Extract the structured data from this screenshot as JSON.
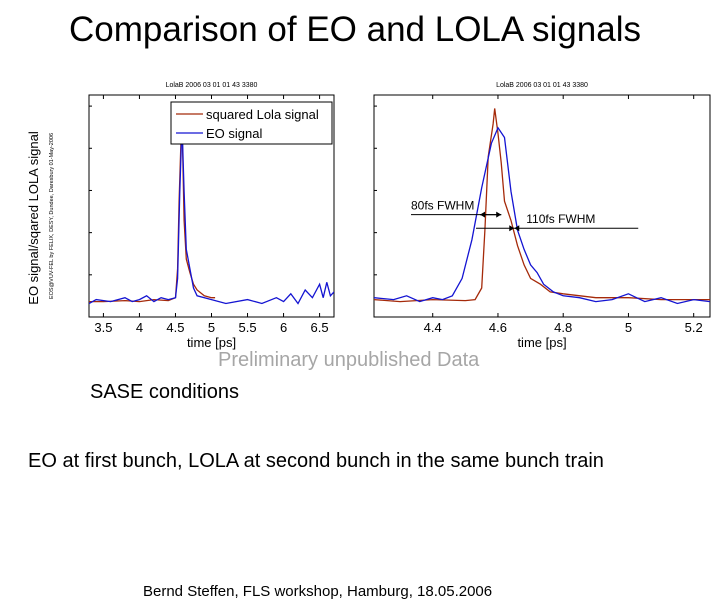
{
  "slide": {
    "title": "Comparison of EO and LOLA signals",
    "watermark": "Preliminary unpublished Data",
    "sase": "SASE conditions",
    "bunch_note": "EO at first bunch, LOLA at second bunch in the same bunch train",
    "footer": "Bernd Steffen, FLS workshop, Hamburg, 18.05.2006"
  },
  "colors": {
    "lola": "#a52a0a",
    "eo": "#1414d2",
    "axes": "#000000"
  },
  "chart_data": [
    {
      "type": "line",
      "title": "LolaB 2006 03 01 01 43 3380",
      "xlabel": "time [ps]",
      "ylabel": "EO signal/sqared LOLA signal",
      "side_note": "EOS@VUV-FEL by FELIX, DESY, Dundee, Daresbury 01-May-2006",
      "xlim": [
        3.3,
        6.7
      ],
      "ylim": [
        -0.05,
        1.1
      ],
      "xticks": [
        3.5,
        4,
        4.5,
        5,
        5.5,
        6,
        6.5
      ],
      "legend": {
        "position": "top-right",
        "entries": [
          "squared Lola signal",
          "EO signal"
        ]
      },
      "series": [
        {
          "name": "squared Lola signal",
          "color": "#a52a0a",
          "points": [
            [
              3.3,
              0.03
            ],
            [
              3.5,
              0.03
            ],
            [
              3.8,
              0.035
            ],
            [
              4.0,
              0.03
            ],
            [
              4.2,
              0.04
            ],
            [
              4.4,
              0.035
            ],
            [
              4.5,
              0.05
            ],
            [
              4.53,
              0.2
            ],
            [
              4.55,
              0.55
            ],
            [
              4.575,
              0.85
            ],
            [
              4.585,
              1.03
            ],
            [
              4.6,
              0.8
            ],
            [
              4.62,
              0.45
            ],
            [
              4.65,
              0.25
            ],
            [
              4.7,
              0.18
            ],
            [
              4.75,
              0.12
            ],
            [
              4.8,
              0.09
            ],
            [
              4.9,
              0.06
            ],
            [
              5.0,
              0.05
            ],
            [
              5.05,
              0.05
            ]
          ]
        },
        {
          "name": "EO signal",
          "color": "#1414d2",
          "points": [
            [
              3.3,
              0.02
            ],
            [
              3.4,
              0.04
            ],
            [
              3.6,
              0.03
            ],
            [
              3.8,
              0.05
            ],
            [
              3.9,
              0.03
            ],
            [
              4.0,
              0.04
            ],
            [
              4.1,
              0.06
            ],
            [
              4.2,
              0.03
            ],
            [
              4.3,
              0.05
            ],
            [
              4.4,
              0.04
            ],
            [
              4.5,
              0.05
            ],
            [
              4.53,
              0.15
            ],
            [
              4.56,
              0.6
            ],
            [
              4.59,
              0.95
            ],
            [
              4.62,
              0.6
            ],
            [
              4.65,
              0.3
            ],
            [
              4.7,
              0.2
            ],
            [
              4.75,
              0.1
            ],
            [
              4.8,
              0.06
            ],
            [
              5.0,
              0.04
            ],
            [
              5.2,
              0.02
            ],
            [
              5.5,
              0.04
            ],
            [
              5.7,
              0.02
            ],
            [
              5.9,
              0.05
            ],
            [
              6.0,
              0.03
            ],
            [
              6.1,
              0.07
            ],
            [
              6.2,
              0.02
            ],
            [
              6.3,
              0.09
            ],
            [
              6.4,
              0.05
            ],
            [
              6.5,
              0.12
            ],
            [
              6.55,
              0.05
            ],
            [
              6.6,
              0.13
            ],
            [
              6.65,
              0.06
            ],
            [
              6.7,
              0.08
            ]
          ]
        }
      ]
    },
    {
      "type": "line",
      "title": "LolaB 2006 03 01 01 43 3380",
      "xlabel": "time [ps]",
      "xlim": [
        4.22,
        5.25
      ],
      "ylim": [
        -0.05,
        1.1
      ],
      "xticks": [
        4.4,
        4.6,
        4.8,
        5,
        5.2
      ],
      "annotations": [
        "80fs FWHM",
        "110fs FWHM"
      ],
      "series": [
        {
          "name": "squared Lola signal",
          "color": "#a52a0a",
          "points": [
            [
              4.22,
              0.04
            ],
            [
              4.3,
              0.03
            ],
            [
              4.4,
              0.04
            ],
            [
              4.5,
              0.035
            ],
            [
              4.53,
              0.04
            ],
            [
              4.55,
              0.1
            ],
            [
              4.56,
              0.4
            ],
            [
              4.57,
              0.78
            ],
            [
              4.585,
              0.95
            ],
            [
              4.59,
              1.03
            ],
            [
              4.6,
              0.9
            ],
            [
              4.61,
              0.75
            ],
            [
              4.62,
              0.55
            ],
            [
              4.64,
              0.45
            ],
            [
              4.66,
              0.32
            ],
            [
              4.68,
              0.22
            ],
            [
              4.7,
              0.15
            ],
            [
              4.73,
              0.12
            ],
            [
              4.76,
              0.08
            ],
            [
              4.8,
              0.07
            ],
            [
              4.9,
              0.05
            ],
            [
              5.0,
              0.05
            ],
            [
              5.1,
              0.04
            ],
            [
              5.2,
              0.04
            ],
            [
              5.25,
              0.04
            ]
          ]
        },
        {
          "name": "EO signal",
          "color": "#1414d2",
          "points": [
            [
              4.22,
              0.05
            ],
            [
              4.28,
              0.04
            ],
            [
              4.32,
              0.06
            ],
            [
              4.36,
              0.03
            ],
            [
              4.4,
              0.05
            ],
            [
              4.43,
              0.04
            ],
            [
              4.46,
              0.06
            ],
            [
              4.49,
              0.15
            ],
            [
              4.52,
              0.35
            ],
            [
              4.55,
              0.62
            ],
            [
              4.58,
              0.85
            ],
            [
              4.6,
              0.93
            ],
            [
              4.62,
              0.88
            ],
            [
              4.64,
              0.6
            ],
            [
              4.66,
              0.4
            ],
            [
              4.68,
              0.3
            ],
            [
              4.7,
              0.22
            ],
            [
              4.72,
              0.18
            ],
            [
              4.74,
              0.12
            ],
            [
              4.77,
              0.08
            ],
            [
              4.8,
              0.06
            ],
            [
              4.85,
              0.05
            ],
            [
              4.9,
              0.03
            ],
            [
              4.95,
              0.04
            ],
            [
              5.0,
              0.07
            ],
            [
              5.05,
              0.03
            ],
            [
              5.1,
              0.05
            ],
            [
              5.15,
              0.02
            ],
            [
              5.2,
              0.04
            ],
            [
              5.25,
              0.03
            ]
          ]
        }
      ]
    }
  ]
}
